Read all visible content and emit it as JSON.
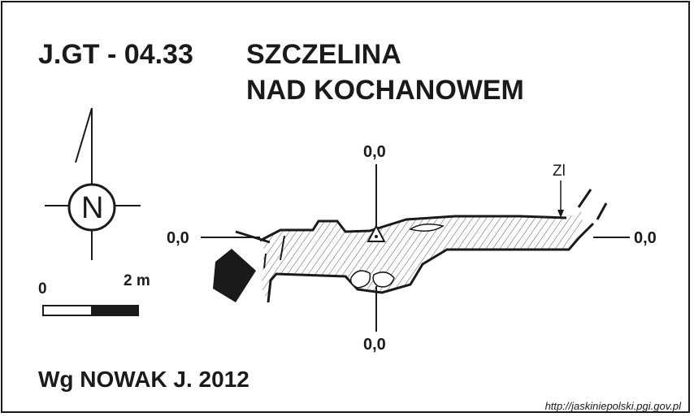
{
  "header": {
    "code": "J.GT - 04.33",
    "title_line1": "SZCZELINA",
    "title_line2": "NAD KOCHANOWEM"
  },
  "compass": {
    "label": "N"
  },
  "scale": {
    "start_label": "0",
    "end_label": "2 m"
  },
  "datum": {
    "top": "0,0",
    "bottom": "0,0",
    "left": "0,0",
    "right": "0,0"
  },
  "annotations": {
    "marker": "Zl"
  },
  "credit": {
    "author": "Wg NOWAK J. 2012"
  },
  "footer": {
    "url": "http://jaskiniepolski.pgi.gov.pl"
  },
  "colors": {
    "ink": "#1a1a1a",
    "background": "#ffffff"
  }
}
